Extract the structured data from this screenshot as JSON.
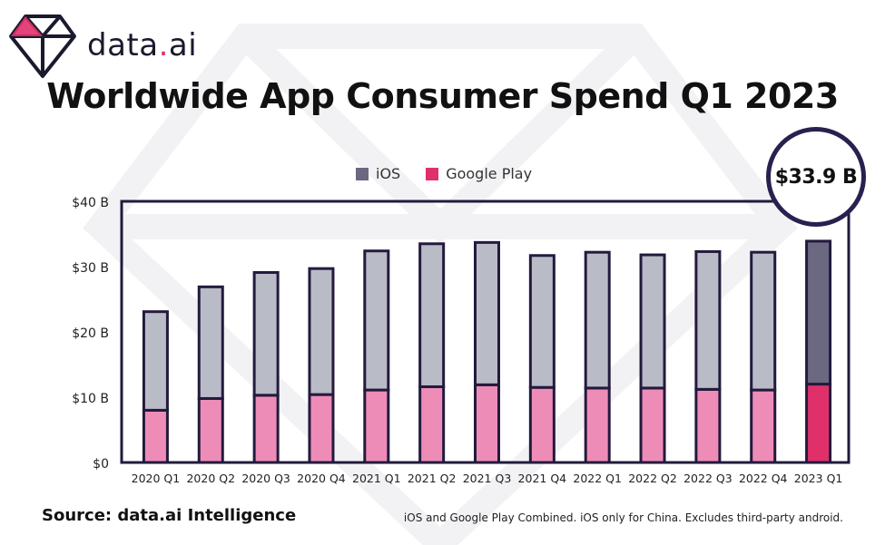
{
  "brand": {
    "name_part1": "data",
    "name_dot": ".",
    "name_part2": "ai"
  },
  "title": "Worldwide App Consumer Spend Q1 2023",
  "callout": "$33.9 B",
  "source": "Source: data.ai Intelligence",
  "footnote": "iOS and Google Play Combined. iOS only for China. Excludes third-party android.",
  "colors": {
    "ios": "#b9bbc7",
    "ios_highlight": "#6b6882",
    "google_play": "#ee8cb8",
    "google_play_highlight": "#e0306a",
    "outline": "#231a3d"
  },
  "chart_data": {
    "type": "bar",
    "stacked": true,
    "categories": [
      "2020 Q1",
      "2020 Q2",
      "2020 Q3",
      "2020 Q4",
      "2021 Q1",
      "2021 Q2",
      "2021 Q3",
      "2021 Q4",
      "2022 Q1",
      "2022 Q2",
      "2022 Q3",
      "2022 Q4",
      "2023 Q1"
    ],
    "series": [
      {
        "name": "Google Play",
        "values": [
          8.0,
          9.8,
          10.3,
          10.4,
          11.1,
          11.6,
          11.9,
          11.5,
          11.4,
          11.4,
          11.2,
          11.1,
          12.0
        ]
      },
      {
        "name": "iOS",
        "values": [
          15.1,
          17.1,
          18.8,
          19.3,
          21.3,
          21.9,
          21.8,
          20.2,
          20.8,
          20.4,
          21.1,
          21.1,
          21.9
        ]
      }
    ],
    "highlight_category": "2023 Q1",
    "ylim": [
      0,
      40
    ],
    "yticks": [
      0,
      10,
      20,
      30,
      40
    ],
    "ytick_labels": [
      "$0",
      "$10 B",
      "$20 B",
      "$30 B",
      "$40 B"
    ],
    "legend": [
      "iOS",
      "Google Play"
    ],
    "legend_position": "top-center",
    "grid": false
  }
}
